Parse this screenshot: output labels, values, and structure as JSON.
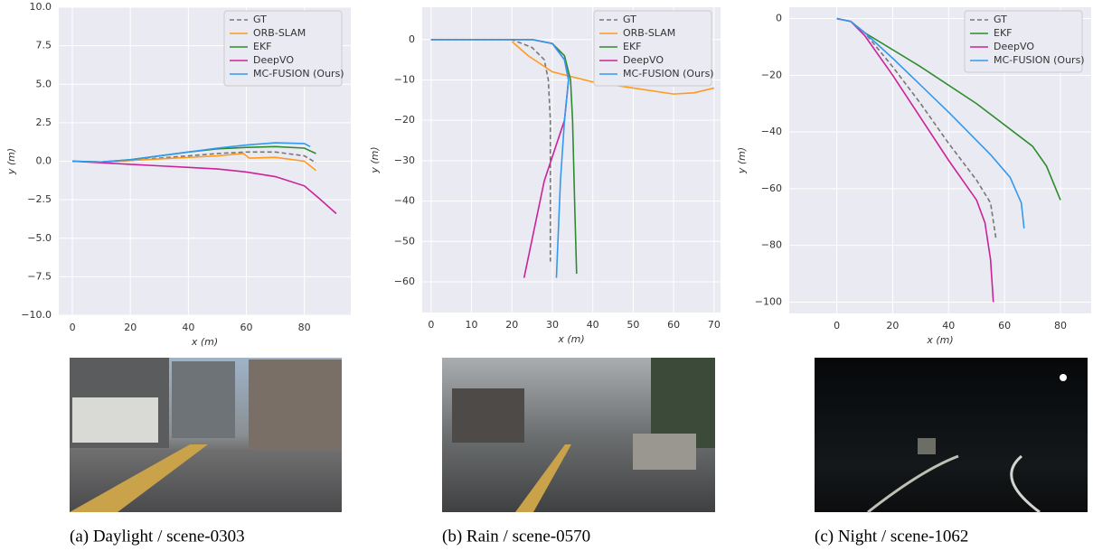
{
  "chart_data": [
    {
      "type": "line",
      "xlabel": "x (m)",
      "ylabel": "y (m)",
      "xlim": [
        -4.7,
        96
      ],
      "ylim": [
        -10,
        10
      ],
      "xticks": [
        0,
        20,
        40,
        60,
        80
      ],
      "yticks": [
        {
          "value": -10,
          "label": "−10.0"
        },
        {
          "value": -7.5,
          "label": "−7.5"
        },
        {
          "value": -5,
          "label": "−5.0"
        },
        {
          "value": -2.5,
          "label": "−2.5"
        },
        {
          "value": 0,
          "label": "0.0"
        },
        {
          "value": 2.5,
          "label": "2.5"
        },
        {
          "value": 5,
          "label": "5.0"
        },
        {
          "value": 7.5,
          "label": "7.5"
        },
        {
          "value": 10,
          "label": "10.0"
        }
      ],
      "grid": true,
      "legend": "upper right",
      "caption": "(a) Daylight / scene-0303",
      "series": [
        {
          "name": "GT",
          "color": "#777777",
          "dashed": true,
          "x": [
            0,
            10,
            20,
            30,
            40,
            50,
            60,
            70,
            80,
            84
          ],
          "values": [
            0,
            -0.05,
            0.05,
            0.2,
            0.35,
            0.5,
            0.6,
            0.6,
            0.35,
            -0.1
          ]
        },
        {
          "name": "ORB-SLAM",
          "color": "#ff9a1f",
          "x": [
            0,
            10,
            20,
            30,
            40,
            50,
            59,
            61,
            70,
            80,
            84
          ],
          "values": [
            0,
            -0.05,
            0.05,
            0.15,
            0.25,
            0.35,
            0.5,
            0.2,
            0.25,
            0.0,
            -0.6
          ]
        },
        {
          "name": "EKF",
          "color": "#2e8b2e",
          "x": [
            0,
            10,
            20,
            30,
            40,
            50,
            60,
            70,
            80,
            84
          ],
          "values": [
            0,
            -0.05,
            0.1,
            0.35,
            0.6,
            0.8,
            0.9,
            0.95,
            0.85,
            0.5
          ]
        },
        {
          "name": "DeepVO",
          "color": "#cc2299",
          "x": [
            0,
            10,
            20,
            30,
            40,
            50,
            60,
            70,
            80,
            85,
            91
          ],
          "values": [
            0,
            -0.1,
            -0.2,
            -0.3,
            -0.4,
            -0.5,
            -0.7,
            -1.0,
            -1.6,
            -2.4,
            -3.4
          ]
        },
        {
          "name": "MC-FUSION (Ours)",
          "color": "#3399ee",
          "x": [
            0,
            10,
            20,
            30,
            40,
            50,
            60,
            70,
            80,
            82
          ],
          "values": [
            0,
            -0.05,
            0.1,
            0.35,
            0.6,
            0.85,
            1.05,
            1.2,
            1.15,
            0.95
          ]
        }
      ]
    },
    {
      "type": "line",
      "xlabel": "x (m)",
      "ylabel": "y (m)",
      "xlim": [
        -2.2,
        71.6
      ],
      "ylim": [
        -67.6,
        8
      ],
      "xticks": [
        0,
        10,
        20,
        30,
        40,
        50,
        60,
        70
      ],
      "yticks": [
        {
          "value": -60,
          "label": "−60"
        },
        {
          "value": -50,
          "label": "−50"
        },
        {
          "value": -40,
          "label": "−40"
        },
        {
          "value": -30,
          "label": "−30"
        },
        {
          "value": -20,
          "label": "−20"
        },
        {
          "value": -10,
          "label": "−10"
        },
        0
      ],
      "grid": true,
      "legend": "upper right",
      "caption": "(b) Rain / scene-0570",
      "series": [
        {
          "name": "GT",
          "color": "#777777",
          "dashed": true,
          "x": [
            0,
            20,
            25,
            28,
            29,
            29.5,
            29.5,
            29.5
          ],
          "values": [
            0,
            0,
            -2,
            -5,
            -10,
            -20,
            -40,
            -55
          ]
        },
        {
          "name": "ORB-SLAM",
          "color": "#ff9a1f",
          "x": [
            20,
            24,
            30,
            40,
            50,
            60,
            65,
            70
          ],
          "values": [
            -0.5,
            -4,
            -8,
            -10.5,
            -12,
            -13.5,
            -13.2,
            -12
          ]
        },
        {
          "name": "EKF",
          "color": "#2e8b2e",
          "x": [
            0,
            25,
            30,
            33,
            34.5,
            35,
            35.5,
            36
          ],
          "values": [
            0,
            0,
            -1,
            -4,
            -10,
            -20,
            -40,
            -58
          ]
        },
        {
          "name": "DeepVO",
          "color": "#cc2299",
          "x": [
            0,
            25,
            30,
            33,
            34,
            33,
            28,
            23
          ],
          "values": [
            0,
            0,
            -1,
            -5,
            -10,
            -20,
            -35,
            -59
          ]
        },
        {
          "name": "MC-FUSION (Ours)",
          "color": "#3399ee",
          "x": [
            0,
            25,
            30,
            33,
            34,
            33,
            32,
            31
          ],
          "values": [
            0,
            0,
            -1,
            -5,
            -10,
            -20,
            -35,
            -59
          ]
        }
      ]
    },
    {
      "type": "line",
      "xlabel": "x (m)",
      "ylabel": "y (m)",
      "xlim": [
        -17,
        91
      ],
      "ylim": [
        -104,
        4
      ],
      "xticks": [
        0,
        20,
        40,
        60,
        80
      ],
      "yticks": [
        {
          "value": -100,
          "label": "−100"
        },
        {
          "value": -80,
          "label": "−80"
        },
        {
          "value": -60,
          "label": "−60"
        },
        {
          "value": -40,
          "label": "−40"
        },
        {
          "value": -20,
          "label": "−20"
        },
        0
      ],
      "grid": true,
      "legend": "upper right",
      "caption": "(c) Night / scene-1062",
      "series": [
        {
          "name": "GT",
          "color": "#777777",
          "dashed": true,
          "x": [
            0,
            5,
            10,
            20,
            30,
            40,
            50,
            55,
            57
          ],
          "values": [
            0,
            -1,
            -5,
            -17,
            -30,
            -44,
            -57,
            -65,
            -78
          ]
        },
        {
          "name": "EKF",
          "color": "#2e8b2e",
          "x": [
            0,
            5,
            10,
            30,
            50,
            70,
            75,
            80
          ],
          "values": [
            0,
            -1,
            -5,
            -17,
            -30,
            -45,
            -52,
            -64
          ]
        },
        {
          "name": "DeepVO",
          "color": "#cc2299",
          "x": [
            0,
            5,
            10,
            20,
            30,
            40,
            50,
            53,
            55,
            56
          ],
          "values": [
            0,
            -1,
            -6,
            -20,
            -35,
            -50,
            -64,
            -72,
            -85,
            -100
          ]
        },
        {
          "name": "MC-FUSION (Ours)",
          "color": "#3399ee",
          "x": [
            0,
            5,
            10,
            20,
            40,
            55,
            62,
            66,
            67
          ],
          "values": [
            0,
            -1,
            -5,
            -14,
            -33,
            -48,
            -56,
            -65,
            -74
          ]
        }
      ]
    }
  ]
}
